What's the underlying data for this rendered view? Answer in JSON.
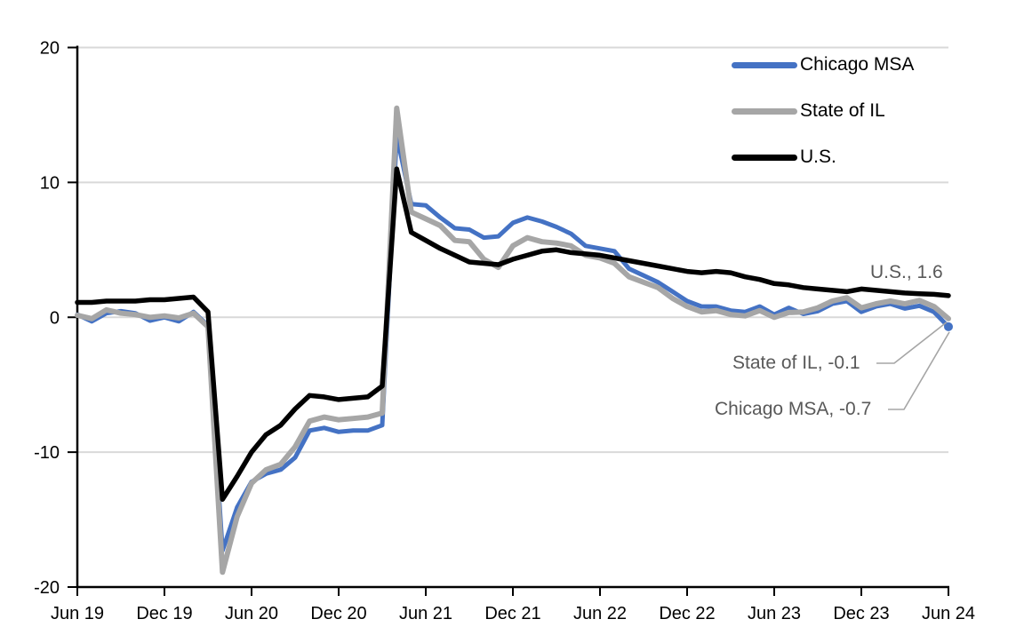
{
  "legend": {
    "items": [
      {
        "label": "Chicago MSA",
        "color": "#4472C4"
      },
      {
        "label": "State of IL",
        "color": "#A6A6A6"
      },
      {
        "label": "U.S.",
        "color": "#000000"
      }
    ]
  },
  "annotations": {
    "us": {
      "text": "U.S., 1.6"
    },
    "il": {
      "text": "State of IL, -0.1"
    },
    "chicago": {
      "text": "Chicago MSA, -0.7"
    }
  },
  "axes": {
    "y_tick_labels": [
      "20",
      "10",
      "0",
      "-10",
      "-20"
    ],
    "y_tick_values": [
      20,
      10,
      0,
      -10,
      -20
    ],
    "x_tick_labels": [
      "Jun 19",
      "Dec 19",
      "Jun 20",
      "Dec 20",
      "Jun 21",
      "Dec 21",
      "Jun 22",
      "Dec 22",
      "Jun 23",
      "Dec 23",
      "Jun 24"
    ]
  },
  "colors": {
    "gridline": "#D9D9D9",
    "axis": "#000000",
    "leader_line": "#A5A5A5",
    "annotation_text": "#595959"
  },
  "chart_data": {
    "type": "line",
    "title": "",
    "xlabel": "",
    "ylabel": "",
    "ylim": [
      -20,
      20
    ],
    "y_tick_step": 10,
    "grid": "horizontal gridlines at -10, 0, 10, 20",
    "legend_position": "top-right",
    "x": [
      "Jun 19",
      "Jul 19",
      "Aug 19",
      "Sep 19",
      "Oct 19",
      "Nov 19",
      "Dec 19",
      "Jan 20",
      "Feb 20",
      "Mar 20",
      "Apr 20",
      "May 20",
      "Jun 20",
      "Jul 20",
      "Aug 20",
      "Sep 20",
      "Oct 20",
      "Nov 20",
      "Dec 20",
      "Jan 21",
      "Feb 21",
      "Mar 21",
      "Apr 21",
      "May 21",
      "Jun 21",
      "Jul 21",
      "Aug 21",
      "Sep 21",
      "Oct 21",
      "Nov 21",
      "Dec 21",
      "Jan 22",
      "Feb 22",
      "Mar 22",
      "Apr 22",
      "May 22",
      "Jun 22",
      "Jul 22",
      "Aug 22",
      "Sep 22",
      "Oct 22",
      "Nov 22",
      "Dec 22",
      "Jan 23",
      "Feb 23",
      "Mar 23",
      "Apr 23",
      "May 23",
      "Jun 23",
      "Jul 23",
      "Aug 23",
      "Sep 23",
      "Oct 23",
      "Nov 23",
      "Dec 23",
      "Jan 24",
      "Feb 24",
      "Mar 24",
      "Apr 24",
      "May 24",
      "Jun 24"
    ],
    "x_axis_tick_every_months": 6,
    "series": [
      {
        "name": "Chicago MSA",
        "color": "#4472C4",
        "stroke_width": 5,
        "end_value_label": -0.7,
        "end_marker": true,
        "values": [
          0.2,
          -0.3,
          0.3,
          0.45,
          0.3,
          -0.25,
          0.0,
          -0.3,
          0.4,
          -0.6,
          -17.3,
          -14.1,
          -12.2,
          -11.6,
          -11.3,
          -10.4,
          -8.4,
          -8.2,
          -8.5,
          -8.4,
          -8.4,
          -8.0,
          13.5,
          8.4,
          8.3,
          7.4,
          6.6,
          6.5,
          5.9,
          6.0,
          7.0,
          7.4,
          7.1,
          6.7,
          6.2,
          5.3,
          5.1,
          4.9,
          3.6,
          3.1,
          2.6,
          1.9,
          1.2,
          0.8,
          0.8,
          0.5,
          0.4,
          0.8,
          0.2,
          0.7,
          0.25,
          0.45,
          1.0,
          1.2,
          0.4,
          0.8,
          1.0,
          0.65,
          0.85,
          0.4,
          -0.7
        ]
      },
      {
        "name": "State of IL",
        "color": "#A6A6A6",
        "stroke_width": 6,
        "end_value_label": -0.1,
        "end_marker": false,
        "values": [
          0.15,
          -0.1,
          0.55,
          0.3,
          0.2,
          0.0,
          0.1,
          -0.05,
          0.3,
          -0.7,
          -18.9,
          -14.8,
          -12.3,
          -11.3,
          -10.9,
          -9.6,
          -7.7,
          -7.4,
          -7.6,
          -7.5,
          -7.4,
          -7.1,
          15.5,
          7.8,
          7.3,
          6.8,
          5.7,
          5.6,
          4.3,
          3.7,
          5.3,
          5.9,
          5.6,
          5.5,
          5.3,
          4.6,
          4.4,
          4.0,
          3.0,
          2.6,
          2.2,
          1.4,
          0.8,
          0.4,
          0.5,
          0.2,
          0.1,
          0.5,
          0.0,
          0.35,
          0.4,
          0.7,
          1.2,
          1.45,
          0.7,
          1.0,
          1.2,
          1.0,
          1.25,
          0.8,
          -0.1
        ]
      },
      {
        "name": "U.S.",
        "color": "#000000",
        "stroke_width": 5.5,
        "end_value_label": 1.6,
        "end_marker": false,
        "values": [
          1.1,
          1.1,
          1.2,
          1.2,
          1.2,
          1.3,
          1.3,
          1.4,
          1.5,
          0.4,
          -13.5,
          -11.8,
          -10.0,
          -8.7,
          -8.0,
          -6.8,
          -5.8,
          -5.9,
          -6.1,
          -6.0,
          -5.9,
          -5.1,
          11.0,
          6.3,
          5.7,
          5.1,
          4.6,
          4.1,
          4.0,
          3.9,
          4.3,
          4.6,
          4.9,
          5.0,
          4.8,
          4.7,
          4.6,
          4.4,
          4.2,
          4.0,
          3.8,
          3.6,
          3.4,
          3.3,
          3.4,
          3.3,
          3.0,
          2.8,
          2.5,
          2.4,
          2.2,
          2.1,
          2.0,
          1.9,
          2.1,
          2.0,
          1.9,
          1.8,
          1.75,
          1.7,
          1.6
        ]
      }
    ]
  }
}
